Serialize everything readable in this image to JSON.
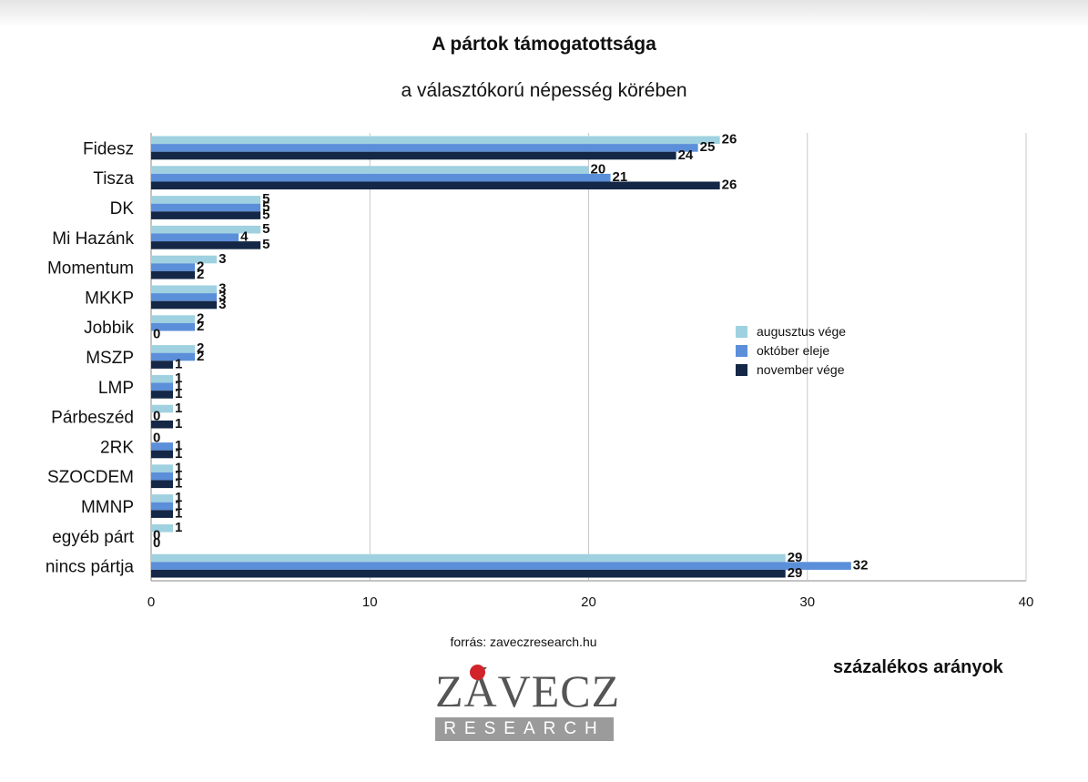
{
  "chart_data": {
    "type": "bar",
    "orientation": "horizontal",
    "title": "A pártok támogatottsága",
    "subtitle": "a választókorú népesség körében",
    "categories": [
      "Fidesz",
      "Tisza",
      "DK",
      "Mi Hazánk",
      "Momentum",
      "MKKP",
      "Jobbik",
      "MSZP",
      "LMP",
      "Párbeszéd",
      "2RK",
      "SZOCDEM",
      "MMNP",
      "egyéb párt",
      "nincs pártja"
    ],
    "series": [
      {
        "name": "augusztus vége",
        "color": "#9fd1e0",
        "values": [
          26,
          20,
          5,
          5,
          3,
          3,
          2,
          2,
          1,
          1,
          0,
          1,
          1,
          1,
          29
        ]
      },
      {
        "name": "október eleje",
        "color": "#5b8fd9",
        "values": [
          25,
          21,
          5,
          4,
          2,
          3,
          2,
          2,
          1,
          0,
          1,
          1,
          1,
          0,
          32
        ]
      },
      {
        "name": "november vége",
        "color": "#142746",
        "values": [
          24,
          26,
          5,
          5,
          2,
          3,
          0,
          1,
          1,
          1,
          1,
          1,
          1,
          0,
          29
        ]
      }
    ],
    "xlim": [
      0,
      40
    ],
    "xticks": [
      "0",
      "10",
      "20",
      "30",
      "40"
    ],
    "grid": true,
    "legend_position": "right"
  },
  "footer": {
    "source": "forrás: zaveczresearch.hu",
    "unit_note": "százalékos arányok"
  },
  "logo": {
    "word": "ZÁVECZ",
    "subword": "RESEARCH"
  }
}
